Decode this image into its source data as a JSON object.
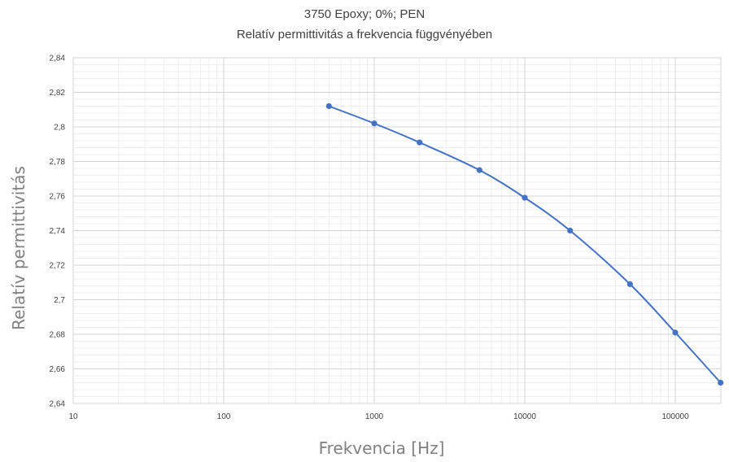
{
  "chart_data": {
    "type": "line",
    "title": "3750 Epoxy; 0%; PEN",
    "subtitle": "Relatív permittivitás a frekvencia függvényében",
    "xlabel": "Frekvencia [Hz]",
    "ylabel": "Relatív permittivitás",
    "x_scale": "log",
    "xlim": [
      10,
      200000
    ],
    "ylim": [
      2.64,
      2.84
    ],
    "x_ticks": [
      "10",
      "100",
      "1000",
      "10000",
      "100000"
    ],
    "y_ticks": [
      "2,64",
      "2,66",
      "2,68",
      "2,7",
      "2,72",
      "2,74",
      "2,76",
      "2,78",
      "2,8",
      "2,82",
      "2,84"
    ],
    "grid": true,
    "legend": "none",
    "series": [
      {
        "color": "#4472C4",
        "x": [
          500,
          1000,
          2000,
          5000,
          10000,
          20000,
          50000,
          100000,
          200000
        ],
        "y": [
          2.812,
          2.802,
          2.791,
          2.775,
          2.759,
          2.74,
          2.709,
          2.681,
          2.652
        ]
      }
    ]
  }
}
